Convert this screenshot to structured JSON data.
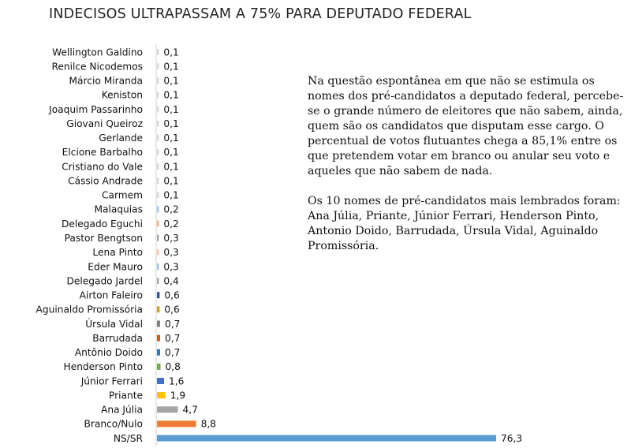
{
  "chart_data": {
    "type": "bar",
    "orientation": "horizontal",
    "title": "INDECISOS ULTRAPASSAM A 75% PARA DEPUTADO FEDERAL",
    "categories": [
      "Wellington Galdino",
      "Renilce Nicodemos",
      "Márcio Miranda",
      "Keniston",
      "Joaquim Passarinho",
      "Giovani Queiroz",
      "Gerlande",
      "Elcione Barbalho",
      "Cristiano do Vale",
      "Cássio Andrade",
      "Carmem",
      "Malaquias",
      "Delegado Eguchi",
      "Pastor Bengtson",
      "Lena Pinto",
      "Eder Mauro",
      "Delegado Jardel",
      "Airton Faleiro",
      "Aguinaldo Promissória",
      "Úrsula Vidal",
      "Barrudada",
      "Antônio Doido",
      "Henderson Pinto",
      "Júnior Ferrari",
      "Priante",
      "Ana Júlia",
      "Branco/Nulo",
      "NS/SR"
    ],
    "values": [
      0.1,
      0.1,
      0.1,
      0.1,
      0.1,
      0.1,
      0.1,
      0.1,
      0.1,
      0.1,
      0.1,
      0.2,
      0.2,
      0.3,
      0.3,
      0.3,
      0.4,
      0.6,
      0.6,
      0.7,
      0.7,
      0.7,
      0.8,
      1.6,
      1.9,
      4.7,
      8.8,
      76.3
    ],
    "value_labels": [
      "0,1",
      "0,1",
      "0,1",
      "0,1",
      "0,1",
      "0,1",
      "0,1",
      "0,1",
      "0,1",
      "0,1",
      "0,1",
      "0,2",
      "0,2",
      "0,3",
      "0,3",
      "0,3",
      "0,4",
      "0,6",
      "0,6",
      "0,7",
      "0,7",
      "0,7",
      "0,8",
      "1,6",
      "1,9",
      "4,7",
      "8,8",
      "76,3"
    ],
    "colors": [
      "#d9d9d9",
      "#d9d9d9",
      "#d9d9d9",
      "#d9d9d9",
      "#d9d9d9",
      "#d9d9d9",
      "#d9d9d9",
      "#d9d9d9",
      "#d9d9d9",
      "#d9d9d9",
      "#d9d9d9",
      "#9dc3e6",
      "#f4b183",
      "#a5a5a5",
      "#f8cbad",
      "#9dc3e6",
      "#a5a5a5",
      "#2f5597",
      "#c9a227",
      "#7f7f7f",
      "#c55a11",
      "#2e75b6",
      "#70ad47",
      "#4472c4",
      "#ffc000",
      "#a5a5a5",
      "#ed7d31",
      "#5b9bd5"
    ],
    "grid": false,
    "legend": "none"
  },
  "notes": {
    "paragraph1": "Na questão espontânea em que não se estimula os nomes dos pré-candidatos a deputado federal, percebe-se o grande número de eleitores que não sabem, ainda, quem são os candidatos que disputam esse cargo. O percentual de votos flutuantes chega a 85,1% entre os que pretendem votar em branco ou anular seu voto e aqueles que não sabem de nada.",
    "paragraph2": "Os 10 nomes de pré-candidatos mais lembrados foram: Ana Júlia, Priante, Júnior Ferrari, Henderson Pinto, Antonio Doido, Barrudada, Úrsula Vidal, Aguinaldo Promissória."
  }
}
